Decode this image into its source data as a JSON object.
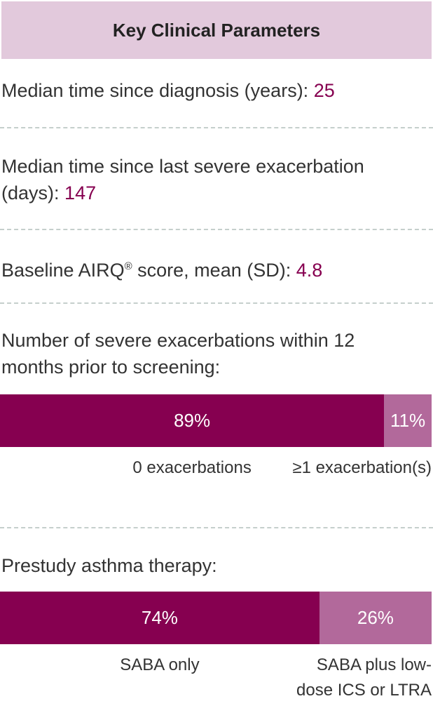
{
  "header": {
    "title": "Key Clinical Parameters"
  },
  "items": [
    {
      "label": "Median time since diagnosis (years):",
      "value": "25"
    },
    {
      "label": "Median time since last severe exacerbation (days):",
      "value": "147"
    },
    {
      "label": "Baseline AIRQ",
      "sup": "®",
      "label_end": " score, mean (SD):",
      "value": "4.8"
    }
  ],
  "bars": [
    {
      "title": "Number of severe exacerbations within 12 months prior to screening:",
      "segments": [
        {
          "value": 89,
          "value_label": "89%",
          "label": "0 exacerbations",
          "color": "#860050"
        },
        {
          "value": 11,
          "value_label": "11%",
          "label": "≥1 exacerbation(s)",
          "color": "#b2699b"
        }
      ]
    },
    {
      "title": "Prestudy asthma therapy:",
      "segments": [
        {
          "value": 74,
          "value_label": "74%",
          "label": "SABA only",
          "color": "#860050"
        },
        {
          "value": 26,
          "value_label": "26%",
          "label": "SABA plus low-dose ICS or LTRA",
          "color": "#b2699b"
        }
      ]
    }
  ]
}
